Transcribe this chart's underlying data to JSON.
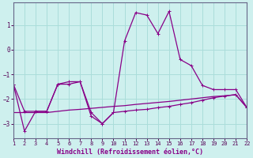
{
  "xlabel": "Windchill (Refroidissement éolien,°C)",
  "background_color": "#cef0ee",
  "grid_color": "#aaddda",
  "line_color": "#880088",
  "spine_color": "#666688",
  "tick_color": "#550055",
  "x_ticks": [
    1,
    2,
    3,
    4,
    5,
    6,
    7,
    8,
    9,
    10,
    11,
    12,
    13,
    14,
    15,
    16,
    17,
    18,
    19,
    20,
    21,
    22
  ],
  "xlim": [
    1,
    22
  ],
  "ylim": [
    -3.6,
    1.9
  ],
  "yticks": [
    -3,
    -2,
    -1,
    0,
    1
  ],
  "line1_x": [
    1,
    2,
    3,
    4,
    5,
    6,
    7,
    8,
    9,
    10,
    11,
    12,
    13,
    14,
    15,
    16,
    17,
    18,
    19,
    20,
    21,
    22
  ],
  "line1_y": [
    -1.4,
    -3.3,
    -2.5,
    -2.5,
    -1.4,
    -1.4,
    -1.3,
    -2.7,
    -3.0,
    -2.55,
    -2.5,
    -2.45,
    -2.42,
    -2.35,
    -2.3,
    -2.22,
    -2.15,
    -2.05,
    -1.95,
    -1.88,
    -1.82,
    -2.35
  ],
  "line2_x": [
    1,
    2,
    3,
    4,
    5,
    6,
    7,
    8,
    9,
    10,
    11,
    12,
    13,
    14,
    15,
    16,
    17,
    18,
    19,
    20,
    21,
    22
  ],
  "line2_y": [
    -1.4,
    -2.5,
    -2.5,
    -2.5,
    -1.4,
    -1.3,
    -1.3,
    -2.55,
    -3.0,
    -2.55,
    0.35,
    1.5,
    1.4,
    0.65,
    1.55,
    -0.4,
    -0.65,
    -1.45,
    -1.62,
    -1.62,
    -1.62,
    -2.35
  ],
  "line3_x": [
    1,
    2,
    3,
    4,
    5,
    6,
    7,
    8,
    9,
    10,
    11,
    12,
    13,
    14,
    15,
    16,
    17,
    18,
    19,
    20,
    21,
    22
  ],
  "line3_y": [
    -2.55,
    -2.55,
    -2.55,
    -2.55,
    -2.5,
    -2.45,
    -2.42,
    -2.38,
    -2.34,
    -2.3,
    -2.27,
    -2.22,
    -2.18,
    -2.14,
    -2.1,
    -2.05,
    -2.0,
    -1.95,
    -1.9,
    -1.87,
    -1.83,
    -2.35
  ]
}
